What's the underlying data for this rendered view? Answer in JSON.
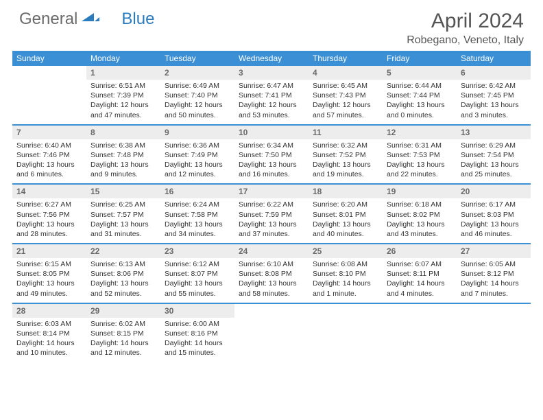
{
  "logo": {
    "word1": "General",
    "word2": "Blue"
  },
  "title": "April 2024",
  "location": "Robegano, Veneto, Italy",
  "colors": {
    "header_bg": "#3b8fd4",
    "header_text": "#ffffff",
    "daynum_bg": "#ededed",
    "daynum_text": "#6a6a6a",
    "body_text": "#333333",
    "title_text": "#555555",
    "logo_gray": "#6b6b6b",
    "logo_blue": "#2b7bbf",
    "week_divider": "#3b8fd4"
  },
  "weekdays": [
    "Sunday",
    "Monday",
    "Tuesday",
    "Wednesday",
    "Thursday",
    "Friday",
    "Saturday"
  ],
  "first_weekday_index": 1,
  "days": [
    {
      "n": 1,
      "sr": "6:51 AM",
      "ss": "7:39 PM",
      "dl": "12 hours and 47 minutes."
    },
    {
      "n": 2,
      "sr": "6:49 AM",
      "ss": "7:40 PM",
      "dl": "12 hours and 50 minutes."
    },
    {
      "n": 3,
      "sr": "6:47 AM",
      "ss": "7:41 PM",
      "dl": "12 hours and 53 minutes."
    },
    {
      "n": 4,
      "sr": "6:45 AM",
      "ss": "7:43 PM",
      "dl": "12 hours and 57 minutes."
    },
    {
      "n": 5,
      "sr": "6:44 AM",
      "ss": "7:44 PM",
      "dl": "13 hours and 0 minutes."
    },
    {
      "n": 6,
      "sr": "6:42 AM",
      "ss": "7:45 PM",
      "dl": "13 hours and 3 minutes."
    },
    {
      "n": 7,
      "sr": "6:40 AM",
      "ss": "7:46 PM",
      "dl": "13 hours and 6 minutes."
    },
    {
      "n": 8,
      "sr": "6:38 AM",
      "ss": "7:48 PM",
      "dl": "13 hours and 9 minutes."
    },
    {
      "n": 9,
      "sr": "6:36 AM",
      "ss": "7:49 PM",
      "dl": "13 hours and 12 minutes."
    },
    {
      "n": 10,
      "sr": "6:34 AM",
      "ss": "7:50 PM",
      "dl": "13 hours and 16 minutes."
    },
    {
      "n": 11,
      "sr": "6:32 AM",
      "ss": "7:52 PM",
      "dl": "13 hours and 19 minutes."
    },
    {
      "n": 12,
      "sr": "6:31 AM",
      "ss": "7:53 PM",
      "dl": "13 hours and 22 minutes."
    },
    {
      "n": 13,
      "sr": "6:29 AM",
      "ss": "7:54 PM",
      "dl": "13 hours and 25 minutes."
    },
    {
      "n": 14,
      "sr": "6:27 AM",
      "ss": "7:56 PM",
      "dl": "13 hours and 28 minutes."
    },
    {
      "n": 15,
      "sr": "6:25 AM",
      "ss": "7:57 PM",
      "dl": "13 hours and 31 minutes."
    },
    {
      "n": 16,
      "sr": "6:24 AM",
      "ss": "7:58 PM",
      "dl": "13 hours and 34 minutes."
    },
    {
      "n": 17,
      "sr": "6:22 AM",
      "ss": "7:59 PM",
      "dl": "13 hours and 37 minutes."
    },
    {
      "n": 18,
      "sr": "6:20 AM",
      "ss": "8:01 PM",
      "dl": "13 hours and 40 minutes."
    },
    {
      "n": 19,
      "sr": "6:18 AM",
      "ss": "8:02 PM",
      "dl": "13 hours and 43 minutes."
    },
    {
      "n": 20,
      "sr": "6:17 AM",
      "ss": "8:03 PM",
      "dl": "13 hours and 46 minutes."
    },
    {
      "n": 21,
      "sr": "6:15 AM",
      "ss": "8:05 PM",
      "dl": "13 hours and 49 minutes."
    },
    {
      "n": 22,
      "sr": "6:13 AM",
      "ss": "8:06 PM",
      "dl": "13 hours and 52 minutes."
    },
    {
      "n": 23,
      "sr": "6:12 AM",
      "ss": "8:07 PM",
      "dl": "13 hours and 55 minutes."
    },
    {
      "n": 24,
      "sr": "6:10 AM",
      "ss": "8:08 PM",
      "dl": "13 hours and 58 minutes."
    },
    {
      "n": 25,
      "sr": "6:08 AM",
      "ss": "8:10 PM",
      "dl": "14 hours and 1 minute."
    },
    {
      "n": 26,
      "sr": "6:07 AM",
      "ss": "8:11 PM",
      "dl": "14 hours and 4 minutes."
    },
    {
      "n": 27,
      "sr": "6:05 AM",
      "ss": "8:12 PM",
      "dl": "14 hours and 7 minutes."
    },
    {
      "n": 28,
      "sr": "6:03 AM",
      "ss": "8:14 PM",
      "dl": "14 hours and 10 minutes."
    },
    {
      "n": 29,
      "sr": "6:02 AM",
      "ss": "8:15 PM",
      "dl": "14 hours and 12 minutes."
    },
    {
      "n": 30,
      "sr": "6:00 AM",
      "ss": "8:16 PM",
      "dl": "14 hours and 15 minutes."
    }
  ],
  "labels": {
    "sunrise": "Sunrise:",
    "sunset": "Sunset:",
    "daylight": "Daylight:"
  }
}
